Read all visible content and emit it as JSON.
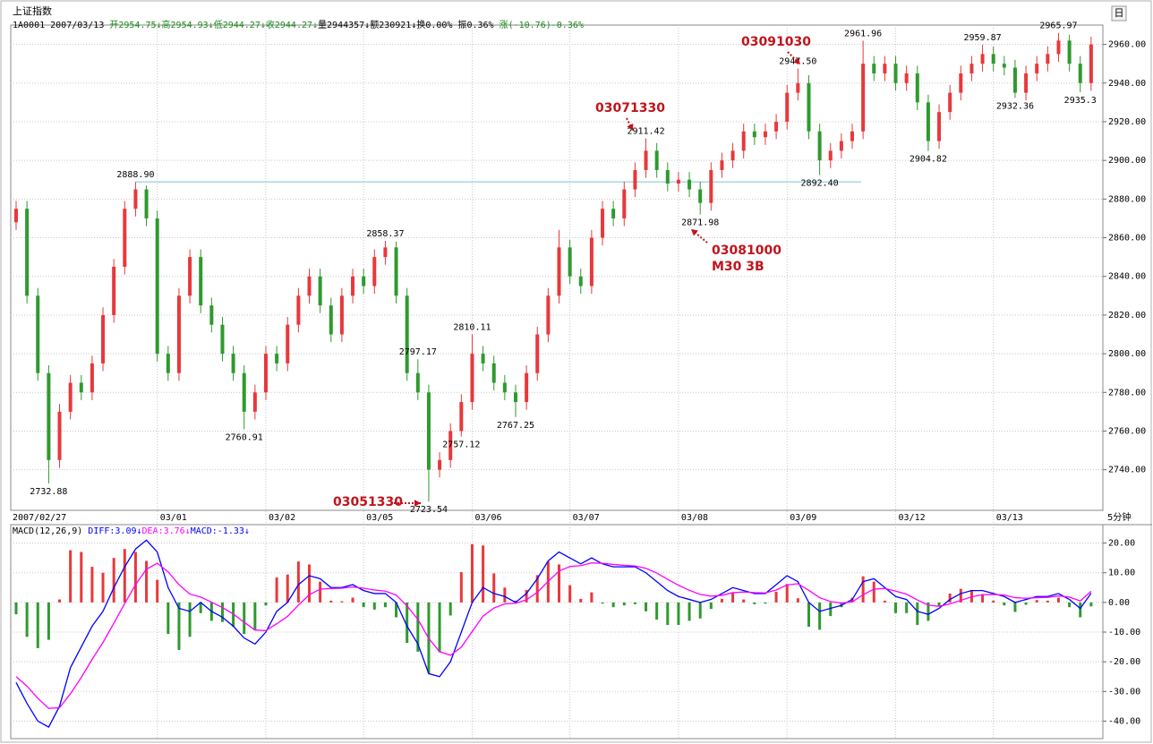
{
  "header": {
    "title": "上证指数",
    "info": [
      "1A0001 2007/03/13 ",
      "开2954.75↓高2954.93↓低2944.27↓收2944.27↓",
      "量2944357↓额230921↓换0.00% 振0.36% ",
      "涨(-10.76)-0.36%"
    ],
    "view_button": "日"
  },
  "chart_data": [
    {
      "type": "candlestick",
      "colors": {
        "up": "#e8383b",
        "down": "#2e9a2e",
        "reference": "#7cc4d8"
      },
      "period": "5分钟",
      "categories": [
        "2007/02/27",
        null,
        null,
        null,
        null,
        null,
        null,
        null,
        null,
        null,
        null,
        null,
        null,
        "03/01",
        null,
        null,
        null,
        null,
        null,
        null,
        null,
        null,
        null,
        "03/02",
        null,
        null,
        null,
        null,
        null,
        null,
        null,
        null,
        "03/05",
        null,
        null,
        null,
        null,
        null,
        null,
        null,
        null,
        null,
        "03/06",
        null,
        null,
        null,
        null,
        null,
        null,
        null,
        null,
        "03/07",
        null,
        null,
        null,
        null,
        null,
        null,
        null,
        null,
        null,
        "03/08",
        null,
        null,
        null,
        null,
        null,
        null,
        null,
        null,
        null,
        "03/09",
        null,
        null,
        null,
        null,
        null,
        null,
        null,
        null,
        null,
        "03/12",
        null,
        null,
        null,
        null,
        null,
        null,
        null,
        null,
        "03/13",
        null,
        null,
        null,
        null,
        null,
        null,
        null,
        null,
        null
      ],
      "open": [
        2868,
        2875,
        2830,
        2790,
        2745,
        2770,
        2785,
        2780,
        2795,
        2820,
        2845,
        2875,
        2885,
        2870,
        2800,
        2790,
        2830,
        2850,
        2825,
        2815,
        2800,
        2790,
        2770,
        2780,
        2800,
        2795,
        2815,
        2830,
        2840,
        2825,
        2810,
        2830,
        2840,
        2835,
        2850,
        2855,
        2830,
        2790,
        2780,
        2740,
        2745,
        2760,
        2775,
        2800,
        2795,
        2785,
        2780,
        2775,
        2790,
        2810,
        2830,
        2855,
        2840,
        2835,
        2860,
        2875,
        2870,
        2885,
        2895,
        2905,
        2895,
        2888,
        2890,
        2885,
        2878,
        2895,
        2900,
        2905,
        2915,
        2912,
        2915,
        2920,
        2935,
        2940,
        2915,
        2900,
        2905,
        2910,
        2915,
        2950,
        2945,
        2950,
        2940,
        2945,
        2930,
        2910,
        2925,
        2935,
        2945,
        2950,
        2955,
        2950,
        2948,
        2935,
        2945,
        2950,
        2955,
        2962,
        2950,
        2940
      ],
      "high": [
        2879,
        2879,
        2834,
        2794,
        2774,
        2789,
        2789,
        2799,
        2824,
        2849,
        2879,
        2888.9,
        2887,
        2874,
        2804,
        2834,
        2854,
        2854,
        2829,
        2819,
        2804,
        2794,
        2784,
        2804,
        2804,
        2819,
        2834,
        2844,
        2844,
        2829,
        2834,
        2844,
        2844,
        2854,
        2858.37,
        2858,
        2834,
        2797.17,
        2784,
        2749,
        2764,
        2779,
        2810.11,
        2804,
        2799,
        2789,
        2784,
        2794,
        2814,
        2834,
        2864,
        2859,
        2844,
        2864,
        2879,
        2879,
        2889,
        2899,
        2911.42,
        2909,
        2899,
        2894,
        2894,
        2889,
        2899,
        2904,
        2909,
        2919,
        2919,
        2919,
        2924,
        2939,
        2947.5,
        2944,
        2919,
        2909,
        2914,
        2919,
        2961.96,
        2954,
        2954,
        2954,
        2949,
        2949,
        2934,
        2929,
        2939,
        2949,
        2954,
        2959.87,
        2959,
        2954,
        2952,
        2949,
        2954,
        2959,
        2965.97,
        2965,
        2954,
        2964
      ],
      "low": [
        2864,
        2826,
        2786,
        2732.88,
        2741,
        2766,
        2776,
        2776,
        2791,
        2816,
        2841,
        2871,
        2866,
        2796,
        2786,
        2786,
        2826,
        2821,
        2811,
        2796,
        2786,
        2760.91,
        2766,
        2776,
        2791,
        2791,
        2811,
        2826,
        2821,
        2806,
        2806,
        2826,
        2831,
        2831,
        2846,
        2826,
        2786,
        2776,
        2723.54,
        2736,
        2741,
        2757.12,
        2771,
        2791,
        2781,
        2776,
        2767.25,
        2771,
        2786,
        2806,
        2826,
        2836,
        2831,
        2831,
        2856,
        2866,
        2866,
        2881,
        2891,
        2891,
        2884,
        2884,
        2881,
        2871.98,
        2874,
        2891,
        2896,
        2901,
        2908,
        2908,
        2911,
        2916,
        2931,
        2911,
        2892.4,
        2896,
        2901,
        2906,
        2911,
        2941,
        2941,
        2936,
        2936,
        2926,
        2904.82,
        2906,
        2921,
        2931,
        2941,
        2946,
        2946,
        2944,
        2932.36,
        2931,
        2941,
        2946,
        2951,
        2946,
        2935.3,
        2936
      ],
      "close": [
        2875,
        2830,
        2790,
        2745,
        2770,
        2785,
        2780,
        2795,
        2820,
        2845,
        2875,
        2885,
        2870,
        2800,
        2790,
        2830,
        2850,
        2825,
        2815,
        2800,
        2790,
        2770,
        2780,
        2800,
        2795,
        2815,
        2830,
        2840,
        2825,
        2810,
        2830,
        2840,
        2835,
        2850,
        2855,
        2830,
        2790,
        2780,
        2740,
        2745,
        2760,
        2775,
        2800,
        2795,
        2785,
        2780,
        2775,
        2790,
        2810,
        2830,
        2855,
        2840,
        2835,
        2860,
        2875,
        2870,
        2885,
        2895,
        2905,
        2895,
        2888,
        2890,
        2885,
        2878,
        2895,
        2900,
        2905,
        2915,
        2912,
        2915,
        2920,
        2935,
        2940,
        2915,
        2900,
        2905,
        2910,
        2915,
        2950,
        2945,
        2950,
        2940,
        2945,
        2930,
        2910,
        2925,
        2935,
        2945,
        2950,
        2955,
        2950,
        2948,
        2935,
        2945,
        2950,
        2955,
        2962,
        2950,
        2940,
        2960
      ],
      "price_labels": [
        {
          "value": 2732.88,
          "label": "2732.88"
        },
        {
          "value": 2888.9,
          "label": "2888.90"
        },
        {
          "value": 2760.91,
          "label": "2760.91"
        },
        {
          "value": 2858.37,
          "label": "2858.37"
        },
        {
          "value": 2797.17,
          "label": "2797.17"
        },
        {
          "value": 2723.54,
          "label": "2723.54"
        },
        {
          "value": 2757.12,
          "label": "2757.12"
        },
        {
          "value": 2810.11,
          "label": "2810.11"
        },
        {
          "value": 2767.25,
          "label": "2767.25"
        },
        {
          "value": 2911.42,
          "label": "2911.42"
        },
        {
          "value": 2871.98,
          "label": "2871.98"
        },
        {
          "value": 2947.5,
          "label": "2947.50"
        },
        {
          "value": 2892.4,
          "label": "2892.40"
        },
        {
          "value": 2961.96,
          "label": "2961.96"
        },
        {
          "value": 2904.82,
          "label": "2904.82"
        },
        {
          "value": 2959.87,
          "label": "2959.87"
        },
        {
          "value": 2932.36,
          "label": "2932.36"
        },
        {
          "value": 2965.97,
          "label": "2965.97"
        },
        {
          "value": 2935.3,
          "label": "2935.3"
        }
      ],
      "markers": [
        "03051330",
        "03071330",
        "03081000",
        "M30 3B",
        "03091030"
      ],
      "ylim": [
        2719,
        2970
      ],
      "yticks": [
        {
          "value": 2740,
          "label": "2740.00"
        },
        {
          "value": 2760,
          "label": "2760.00"
        },
        {
          "value": 2780,
          "label": "2780.00"
        },
        {
          "value": 2800,
          "label": "2800.00"
        },
        {
          "value": 2820,
          "label": "2820.00"
        },
        {
          "value": 2840,
          "label": "2840.00"
        },
        {
          "value": 2860,
          "label": "2860.00"
        },
        {
          "value": 2880,
          "label": "2880.00"
        },
        {
          "value": 2900,
          "label": "2900.00"
        },
        {
          "value": 2920,
          "label": "2920.00"
        },
        {
          "value": 2940,
          "label": "2940.00"
        },
        {
          "value": 2960,
          "label": "2960.00"
        }
      ],
      "grid": true
    },
    {
      "type": "macd",
      "legend": [
        {
          "text": "MACD(12,26,9) ",
          "color": "#000000"
        },
        {
          "text": "DIFF:3.09↓",
          "color": "#0000ff"
        },
        {
          "text": "DEA:3.76↓",
          "color": "#ff00ff"
        },
        {
          "text": "MACD:-1.33↓",
          "color": "#0000ff"
        }
      ],
      "series": [
        {
          "color": "#0000ff",
          "values": [
            -27,
            -34,
            -40,
            -42,
            -35,
            -22,
            -15,
            -8,
            -3,
            5,
            12,
            18,
            21,
            17,
            5,
            -2,
            -3,
            0,
            -3,
            -5,
            -8,
            -12,
            -14,
            -10,
            -3,
            0,
            6,
            9,
            8,
            5,
            5,
            6,
            4,
            3,
            3,
            0,
            -8,
            -14,
            -24,
            -25,
            -20,
            -10,
            0,
            5,
            3,
            2,
            0,
            3,
            8,
            14,
            17,
            15,
            13,
            15,
            13,
            12,
            12,
            12,
            10,
            7,
            4,
            2,
            1,
            0,
            1,
            3,
            5,
            4,
            3,
            3,
            6,
            9,
            7,
            0,
            -3,
            -2,
            -1,
            1,
            7,
            8,
            5,
            2,
            1,
            -3,
            -4,
            -2,
            1,
            3,
            4,
            4,
            3,
            2,
            0,
            1,
            2,
            2,
            3,
            1,
            -2,
            3.09
          ]
        },
        {
          "color": "#ff00ff",
          "values": [
            -25,
            -28.2,
            -32.3,
            -35.7,
            -35.5,
            -30.8,
            -25.3,
            -19.2,
            -13.5,
            -7,
            -0.4,
            6,
            11.2,
            13.2,
            10.3,
            6,
            2.8,
            1.8,
            0.1,
            -1.7,
            -3.9,
            -6.7,
            -9.3,
            -9.5,
            -7.2,
            -4.7,
            -0.9,
            2.6,
            4.5,
            4.7,
            4.8,
            5.2,
            4.8,
            4.2,
            3.8,
            2.5,
            -1.2,
            -5.7,
            -12.1,
            -16.6,
            -17.8,
            -15.1,
            -9.8,
            -4.6,
            -1.9,
            -0.5,
            -0.3,
            0.9,
            3.4,
            7.1,
            10.6,
            12.1,
            12.4,
            13.3,
            13.2,
            12.8,
            12.5,
            12.3,
            11.5,
            9.9,
            7.8,
            5.8,
            4.1,
            2.7,
            2.1,
            2.4,
            3.3,
            3.5,
            3.3,
            3.2,
            4.2,
            5.9,
            6.3,
            4.1,
            1.6,
            0.3,
            -0.2,
            0.2,
            2.6,
            4.5,
            4.7,
            3.8,
            2.8,
            0.8,
            -0.9,
            -1.3,
            -0.5,
            0.7,
            1.9,
            2.6,
            2.7,
            2.5,
            1.6,
            1.4,
            1.6,
            1.7,
            2.2,
            1.8,
            0.5,
            3.76
          ]
        }
      ],
      "histogram": {
        "colors": {
          "up": "#e8383b",
          "down": "#2e9a2e"
        },
        "values": [
          -4,
          -11.6,
          -15.4,
          -12.6,
          1,
          17.6,
          17,
          12,
          10,
          15,
          18,
          17,
          14,
          7.6,
          -10.6,
          -16,
          -11.6,
          -3.6,
          -6.2,
          -6.6,
          -8.2,
          -10.6,
          -9.4,
          -1,
          8.4,
          9.4,
          13.8,
          12.8,
          7,
          0.6,
          0.4,
          1.6,
          -1.6,
          -2.4,
          -1.6,
          -5,
          -13.6,
          -16.6,
          -23.8,
          -16.8,
          -4.4,
          10.2,
          19.6,
          19.2,
          9.8,
          5,
          0.6,
          4.2,
          9.2,
          13.8,
          12.8,
          5.8,
          1.2,
          3.4,
          -0.4,
          -1.6,
          -1,
          -0.6,
          -3,
          -5.8,
          -7.6,
          -7.6,
          -6.2,
          -5.4,
          -2.2,
          1.2,
          3.4,
          1,
          -0.6,
          -0.4,
          3.6,
          6.2,
          1.4,
          -8.2,
          -9.2,
          -4.6,
          -1.6,
          1.6,
          8.8,
          7,
          0.6,
          -3.6,
          -3.6,
          -7.6,
          -6.2,
          -1.4,
          3,
          4.6,
          4.2,
          2.8,
          0.6,
          -1,
          -3.2,
          -0.8,
          0.8,
          0.6,
          1.6,
          -1.6,
          -5,
          -1.33
        ]
      },
      "ylim": [
        -45,
        23.5
      ],
      "yticks": [
        {
          "value": 20,
          "label": "20.00"
        },
        {
          "value": 10,
          "label": "10.00"
        },
        {
          "value": 0,
          "label": "0.00"
        },
        {
          "value": -10,
          "label": "-10.00"
        },
        {
          "value": -20,
          "label": "-20.00"
        },
        {
          "value": -30,
          "label": "-30.00"
        },
        {
          "value": -40,
          "label": "-40.00"
        }
      ],
      "grid": true
    }
  ]
}
